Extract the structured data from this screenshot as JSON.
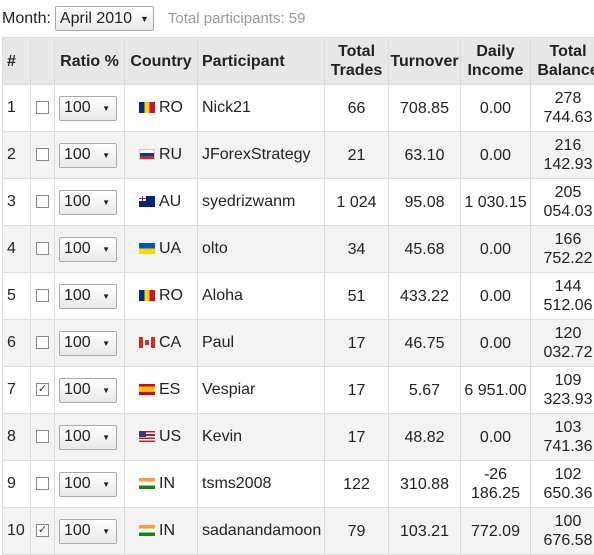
{
  "filter": {
    "month_label": "Month:",
    "month_value": "April 2010",
    "total_label": "Total participants: 59"
  },
  "headers": {
    "rank": "#",
    "ratio": "Ratio %",
    "country": "Country",
    "participant": "Participant",
    "total_trades": "Total Trades",
    "turnover": "Turnover",
    "daily_income": "Daily Income",
    "total_balance": "Total Balance"
  },
  "rows": [
    {
      "rank": "1",
      "checked": false,
      "ratio": "100",
      "flag": "ro",
      "country": "RO",
      "participant": "Nick21",
      "trades": "66",
      "turnover": "708.85",
      "daily_income": "0.00",
      "balance": "278 744.63"
    },
    {
      "rank": "2",
      "checked": false,
      "ratio": "100",
      "flag": "ru",
      "country": "RU",
      "participant": "JForexStrategy",
      "trades": "21",
      "turnover": "63.10",
      "daily_income": "0.00",
      "balance": "216 142.93"
    },
    {
      "rank": "3",
      "checked": false,
      "ratio": "100",
      "flag": "au",
      "country": "AU",
      "participant": "syedrizwanm",
      "trades": "1 024",
      "turnover": "95.08",
      "daily_income": "1 030.15",
      "balance": "205 054.03"
    },
    {
      "rank": "4",
      "checked": false,
      "ratio": "100",
      "flag": "ua",
      "country": "UA",
      "participant": "olto",
      "trades": "34",
      "turnover": "45.68",
      "daily_income": "0.00",
      "balance": "166 752.22"
    },
    {
      "rank": "5",
      "checked": false,
      "ratio": "100",
      "flag": "ro",
      "country": "RO",
      "participant": "Aloha",
      "trades": "51",
      "turnover": "433.22",
      "daily_income": "0.00",
      "balance": "144 512.06"
    },
    {
      "rank": "6",
      "checked": false,
      "ratio": "100",
      "flag": "ca",
      "country": "CA",
      "participant": "Paul",
      "trades": "17",
      "turnover": "46.75",
      "daily_income": "0.00",
      "balance": "120 032.72"
    },
    {
      "rank": "7",
      "checked": true,
      "ratio": "100",
      "flag": "es",
      "country": "ES",
      "participant": "Vespiar",
      "trades": "17",
      "turnover": "5.67",
      "daily_income": "6 951.00",
      "balance": "109 323.93"
    },
    {
      "rank": "8",
      "checked": false,
      "ratio": "100",
      "flag": "us",
      "country": "US",
      "participant": "Kevin",
      "trades": "17",
      "turnover": "48.82",
      "daily_income": "0.00",
      "balance": "103 741.36"
    },
    {
      "rank": "9",
      "checked": false,
      "ratio": "100",
      "flag": "in",
      "country": "IN",
      "participant": "tsms2008",
      "trades": "122",
      "turnover": "310.88",
      "daily_income": "-26 186.25",
      "balance": "102 650.36"
    },
    {
      "rank": "10",
      "checked": true,
      "ratio": "100",
      "flag": "in",
      "country": "IN",
      "participant": "sadanandamoon",
      "trades": "79",
      "turnover": "103.21",
      "daily_income": "772.09",
      "balance": "100 676.58"
    }
  ]
}
